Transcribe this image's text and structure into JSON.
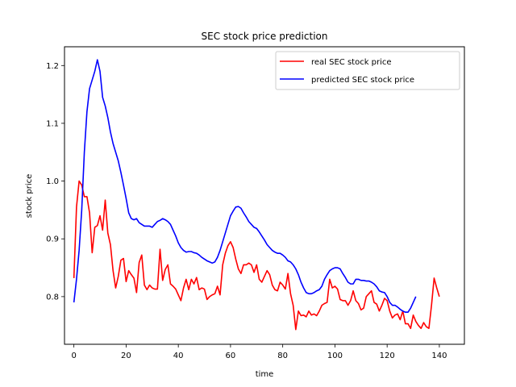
{
  "chart_data": {
    "type": "line",
    "title": "SEC stock price prediction",
    "xlabel": "time",
    "ylabel": "stock price",
    "xlim": [
      -3.6,
      149.6
    ],
    "ylim": [
      0.7175,
      1.2325
    ],
    "xticks": [
      0,
      20,
      40,
      60,
      80,
      100,
      120,
      140
    ],
    "yticks": [
      0.8,
      0.9,
      1.0,
      1.1,
      1.2
    ],
    "xtick_labels": [
      "0",
      "20",
      "40",
      "60",
      "80",
      "100",
      "120",
      "140"
    ],
    "ytick_labels": [
      "0.8",
      "0.9",
      "1.0",
      "1.1",
      "1.2"
    ],
    "grid": false,
    "legend_position": "top-right",
    "series": [
      {
        "name": "real SEC stock price",
        "color": "#ff0000",
        "values": [
          0.832,
          0.955,
          1.0,
          0.993,
          0.973,
          0.973,
          0.945,
          0.876,
          0.92,
          0.923,
          0.94,
          0.915,
          0.967,
          0.91,
          0.89,
          0.845,
          0.815,
          0.835,
          0.863,
          0.866,
          0.826,
          0.845,
          0.838,
          0.832,
          0.807,
          0.859,
          0.872,
          0.82,
          0.812,
          0.82,
          0.815,
          0.813,
          0.813,
          0.882,
          0.828,
          0.847,
          0.855,
          0.822,
          0.818,
          0.813,
          0.803,
          0.793,
          0.815,
          0.83,
          0.812,
          0.83,
          0.822,
          0.833,
          0.812,
          0.815,
          0.813,
          0.795,
          0.8,
          0.803,
          0.805,
          0.818,
          0.803,
          0.855,
          0.875,
          0.888,
          0.895,
          0.885,
          0.865,
          0.848,
          0.84,
          0.855,
          0.855,
          0.858,
          0.855,
          0.842,
          0.855,
          0.83,
          0.825,
          0.835,
          0.845,
          0.838,
          0.82,
          0.812,
          0.81,
          0.825,
          0.82,
          0.813,
          0.84,
          0.805,
          0.785,
          0.743,
          0.775,
          0.767,
          0.768,
          0.765,
          0.775,
          0.768,
          0.77,
          0.767,
          0.775,
          0.785,
          0.788,
          0.79,
          0.83,
          0.815,
          0.818,
          0.813,
          0.795,
          0.793,
          0.793,
          0.785,
          0.793,
          0.81,
          0.793,
          0.788,
          0.777,
          0.78,
          0.8,
          0.805,
          0.81,
          0.79,
          0.787,
          0.775,
          0.785,
          0.797,
          0.793,
          0.775,
          0.763,
          0.768,
          0.77,
          0.76,
          0.775,
          0.753,
          0.753,
          0.745,
          0.768,
          0.757,
          0.75,
          0.745,
          0.755,
          0.748,
          0.745,
          0.785,
          0.832,
          0.815,
          0.8
        ]
      },
      {
        "name": "predicted SEC stock price",
        "color": "#0000ff",
        "values": [
          0.79,
          0.83,
          0.88,
          0.95,
          1.05,
          1.12,
          1.16,
          1.175,
          1.19,
          1.21,
          1.19,
          1.145,
          1.13,
          1.11,
          1.085,
          1.065,
          1.05,
          1.035,
          1.015,
          0.993,
          0.97,
          0.945,
          0.935,
          0.933,
          0.935,
          0.928,
          0.925,
          0.922,
          0.922,
          0.922,
          0.92,
          0.925,
          0.93,
          0.932,
          0.935,
          0.933,
          0.93,
          0.925,
          0.915,
          0.905,
          0.893,
          0.885,
          0.88,
          0.877,
          0.878,
          0.878,
          0.876,
          0.875,
          0.872,
          0.868,
          0.865,
          0.862,
          0.86,
          0.858,
          0.86,
          0.868,
          0.88,
          0.895,
          0.91,
          0.925,
          0.94,
          0.948,
          0.955,
          0.956,
          0.953,
          0.945,
          0.938,
          0.93,
          0.925,
          0.92,
          0.918,
          0.912,
          0.905,
          0.898,
          0.89,
          0.885,
          0.88,
          0.877,
          0.875,
          0.875,
          0.872,
          0.868,
          0.862,
          0.86,
          0.855,
          0.848,
          0.838,
          0.825,
          0.815,
          0.807,
          0.805,
          0.805,
          0.807,
          0.81,
          0.812,
          0.818,
          0.83,
          0.838,
          0.845,
          0.848,
          0.85,
          0.85,
          0.848,
          0.84,
          0.833,
          0.825,
          0.822,
          0.822,
          0.83,
          0.83,
          0.828,
          0.828,
          0.827,
          0.827,
          0.825,
          0.822,
          0.817,
          0.81,
          0.808,
          0.807,
          0.8,
          0.79,
          0.785,
          0.785,
          0.782,
          0.778,
          0.775,
          0.773,
          0.773,
          0.78,
          0.79,
          0.8
        ]
      }
    ]
  }
}
